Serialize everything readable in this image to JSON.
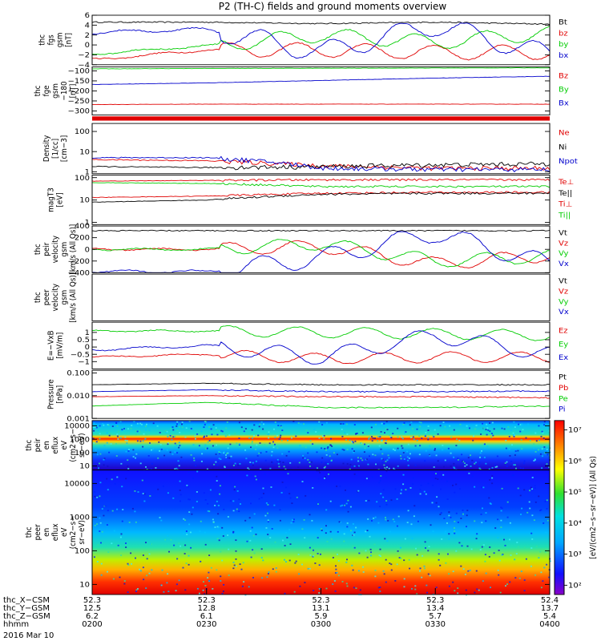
{
  "title": "P2 (TH-C) fields and ground moments overview",
  "colors": {
    "black": "#000000",
    "red": "#e00000",
    "green": "#00cc00",
    "blue": "#0000cc"
  },
  "panels": [
    {
      "id": "fgs",
      "ylabel": [
        "thc",
        "fgs",
        "gsm",
        "[nT]"
      ],
      "scale": "linear",
      "yrange": [
        -4,
        6
      ],
      "ticks": [
        {
          "v": 6,
          "t": "6"
        },
        {
          "v": 4,
          "t": "4"
        },
        {
          "v": 2,
          "t": "2"
        },
        {
          "v": 0,
          "t": "0"
        },
        {
          "v": -2,
          "t": "−2"
        },
        {
          "v": -4,
          "t": "−4"
        }
      ],
      "legend": [
        {
          "t": "Bt",
          "c": "black"
        },
        {
          "t": "bz",
          "c": "red"
        },
        {
          "t": "by",
          "c": "green"
        },
        {
          "t": "bx",
          "c": "blue"
        }
      ]
    },
    {
      "id": "fge",
      "ylabel": [
        "thc",
        "fge",
        "gsm",
        "−180",
        "[nT]"
      ],
      "scale": "linear",
      "yrange": [
        -320,
        -80
      ],
      "ticks": [
        {
          "v": -100,
          "t": "−100"
        },
        {
          "v": -150,
          "t": "−150"
        },
        {
          "v": -200,
          "t": "−200"
        },
        {
          "v": -250,
          "t": "−250"
        },
        {
          "v": -300,
          "t": "−300"
        }
      ],
      "legend": [
        {
          "t": "Bz",
          "c": "red"
        },
        {
          "t": "By",
          "c": "green"
        },
        {
          "t": "Bx",
          "c": "blue"
        }
      ]
    },
    {
      "id": "dens",
      "ylabel": [
        "Density",
        "[1/cc]",
        "[cm−3]"
      ],
      "scale": "log",
      "yrange": [
        0.8,
        250
      ],
      "ticks": [
        {
          "v": 100,
          "t": "100"
        },
        {
          "v": 10,
          "t": "10"
        },
        {
          "v": 1,
          "t": "1"
        }
      ],
      "legend": [
        {
          "t": "Ne",
          "c": "red"
        },
        {
          "t": "Ni",
          "c": "black"
        },
        {
          "t": "Npot",
          "c": "blue"
        }
      ]
    },
    {
      "id": "temp",
      "ylabel": [
        "magT3",
        "[eV]"
      ],
      "scale": "log",
      "yrange": [
        0.8,
        130
      ],
      "ticks": [
        {
          "v": 100,
          "t": "100"
        },
        {
          "v": 10,
          "t": "10"
        },
        {
          "v": 1,
          "t": "1"
        }
      ],
      "legend": [
        {
          "t": "Te⊥",
          "c": "red"
        },
        {
          "t": "Te||",
          "c": "black"
        },
        {
          "t": "Ti⊥",
          "c": "red"
        },
        {
          "t": "Ti||",
          "c": "green"
        }
      ]
    },
    {
      "id": "vi",
      "ylabel": [
        "thc",
        "peir",
        "velocity",
        "gsm",
        "[km/s (All Qs)]"
      ],
      "scale": "linear",
      "yrange": [
        -400,
        400
      ],
      "ticks": [
        {
          "v": 400,
          "t": "400"
        },
        {
          "v": 200,
          "t": "200"
        },
        {
          "v": 0,
          "t": "0"
        },
        {
          "v": -200,
          "t": "−200"
        },
        {
          "v": -400,
          "t": "−400"
        }
      ],
      "legend": [
        {
          "t": "Vt",
          "c": "black"
        },
        {
          "t": "Vz",
          "c": "red"
        },
        {
          "t": "Vy",
          "c": "green"
        },
        {
          "t": "Vx",
          "c": "blue"
        }
      ]
    },
    {
      "id": "ve",
      "ylabel": [
        "thc",
        "peer",
        "velocity",
        "gsm",
        "[km/s (All Qs)]"
      ],
      "scale": "linear",
      "yrange": [
        -1,
        1
      ],
      "ticks": [],
      "legend": [
        {
          "t": "Vt",
          "c": "black"
        },
        {
          "t": "Vz",
          "c": "red"
        },
        {
          "t": "Vy",
          "c": "green"
        },
        {
          "t": "Vx",
          "c": "blue"
        }
      ]
    },
    {
      "id": "efield",
      "ylabel": [
        "E=−VxB",
        "[mV/m]"
      ],
      "scale": "linear",
      "yrange": [
        -1.5,
        1.7
      ],
      "ticks": [
        {
          "v": 1,
          "t": "1"
        },
        {
          "v": 0.5,
          "t": "0.5"
        },
        {
          "v": 0,
          "t": "0"
        },
        {
          "v": -0.5,
          "t": "−0.5"
        },
        {
          "v": -1,
          "t": "−1"
        }
      ],
      "legend": [
        {
          "t": "Ez",
          "c": "red"
        },
        {
          "t": "Ey",
          "c": "green"
        },
        {
          "t": "Ex",
          "c": "blue"
        }
      ]
    },
    {
      "id": "press",
      "ylabel": [
        "Pressure",
        "[nPa]"
      ],
      "scale": "log",
      "yrange": [
        0.001,
        0.13
      ],
      "ticks": [
        {
          "v": 0.1,
          "t": "0.100"
        },
        {
          "v": 0.01,
          "t": "0.010"
        },
        {
          "v": 0.001,
          "t": "0.001"
        }
      ],
      "legend": [
        {
          "t": "Pt",
          "c": "black"
        },
        {
          "t": "Pb",
          "c": "red"
        },
        {
          "t": "Pe",
          "c": "green"
        },
        {
          "t": "Pi",
          "c": "blue"
        }
      ]
    },
    {
      "id": "ispec",
      "ylabel": [
        "thc",
        "peir",
        "en",
        "eflux",
        "eV",
        "(cm2−s−",
        "sr−eV)"
      ],
      "scale": "log",
      "yrange": [
        5,
        25000
      ],
      "ticks": [
        {
          "v": 10000,
          "t": "10000"
        },
        {
          "v": 1000,
          "t": "1000"
        },
        {
          "v": 100,
          "t": "100"
        },
        {
          "v": 10,
          "t": "10"
        }
      ],
      "legend": []
    },
    {
      "id": "espec",
      "ylabel": [
        "thc",
        "peer",
        "en",
        "eflux",
        "eV",
        "(cm2−s−",
        "sr−eV)"
      ],
      "scale": "log",
      "yrange": [
        5,
        25000
      ],
      "ticks": [
        {
          "v": 10000,
          "t": "10000"
        },
        {
          "v": 1000,
          "t": "1000"
        },
        {
          "v": 100,
          "t": "100"
        },
        {
          "v": 10,
          "t": "10"
        }
      ],
      "legend": []
    }
  ],
  "colorbar": {
    "label": "[eV/(cm2−s−sr−eV)] (All Qs)",
    "ticks": [
      {
        "v": 7,
        "t": "10⁷"
      },
      {
        "v": 6,
        "t": "10⁶"
      },
      {
        "v": 5,
        "t": "10⁵"
      },
      {
        "v": 4,
        "t": "10⁴"
      },
      {
        "v": 3,
        "t": "10³"
      },
      {
        "v": 2,
        "t": "10²"
      }
    ]
  },
  "time_axis": {
    "rows": [
      {
        "label": "thc_X−CSM",
        "values": [
          "52.3",
          "52.3",
          "52.3",
          "52.3",
          "52.4"
        ]
      },
      {
        "label": "thc_Y−GSM",
        "values": [
          "12.5",
          "12.8",
          "13.1",
          "13.4",
          "13.7"
        ]
      },
      {
        "label": "thc_Z−GSM",
        "values": [
          "6.2",
          "6.1",
          "5.9",
          "5.7",
          "5.4"
        ]
      },
      {
        "label": "hhmm",
        "values": [
          "0200",
          "0230",
          "0300",
          "0330",
          "0400"
        ]
      }
    ],
    "date": "2016 Mar 10"
  },
  "chart_data": {
    "type": "line",
    "x_label": "hhmm",
    "x": [
      "0200",
      "0230",
      "0300",
      "0330",
      "0400"
    ],
    "series": [
      {
        "panel": "fgs",
        "name": "Bt",
        "values": [
          4.6,
          4.6,
          4.3,
          4.6,
          4.2
        ]
      },
      {
        "panel": "fgs",
        "name": "bz",
        "values": [
          -3.0,
          -1.0,
          -1.0,
          -1.5,
          -1.5
        ]
      },
      {
        "panel": "fgs",
        "name": "by",
        "values": [
          -1.8,
          -0.2,
          2.0,
          0.5,
          2.5
        ]
      },
      {
        "panel": "fgs",
        "name": "bx",
        "values": [
          2.5,
          3.2,
          -1.5,
          4.0,
          -2.0
        ]
      },
      {
        "panel": "fge",
        "name": "Bz",
        "values": [
          -268,
          -266,
          -266,
          -266,
          -266
        ]
      },
      {
        "panel": "fge",
        "name": "By",
        "values": [
          -90,
          -88,
          -87,
          -86,
          -85
        ]
      },
      {
        "panel": "fge",
        "name": "Bx",
        "values": [
          -168,
          -160,
          -148,
          -136,
          -127
        ]
      },
      {
        "panel": "dens",
        "name": "Ne",
        "values": [
          4,
          3.5,
          2,
          1.5,
          1.5
        ]
      },
      {
        "panel": "dens",
        "name": "Ni",
        "values": [
          1.8,
          1.6,
          1.8,
          2.2,
          2.5
        ]
      },
      {
        "panel": "dens",
        "name": "Npot",
        "values": [
          5,
          5,
          1.5,
          1.3,
          1.3
        ]
      },
      {
        "panel": "temp",
        "name": "Te⊥",
        "values": [
          13,
          15,
          20,
          22,
          22
        ]
      },
      {
        "panel": "temp",
        "name": "Te||",
        "values": [
          8,
          10,
          18,
          20,
          20
        ]
      },
      {
        "panel": "temp",
        "name": "Ti⊥",
        "values": [
          70,
          75,
          80,
          80,
          80
        ]
      },
      {
        "panel": "temp",
        "name": "Ti||",
        "values": [
          60,
          55,
          40,
          40,
          40
        ]
      },
      {
        "panel": "vi",
        "name": "Vt",
        "values": [
          320,
          320,
          320,
          320,
          320
        ]
      },
      {
        "panel": "vi",
        "name": "Vz",
        "values": [
          0,
          0,
          50,
          -250,
          -100
        ]
      },
      {
        "panel": "vi",
        "name": "Vy",
        "values": [
          0,
          0,
          100,
          -200,
          -120
        ]
      },
      {
        "panel": "vi",
        "name": "Vx",
        "values": [
          -380,
          -380,
          -150,
          280,
          -250
        ]
      },
      {
        "panel": "efield",
        "name": "Ez",
        "values": [
          -0.7,
          -0.5,
          -0.8,
          -0.7,
          -0.7
        ]
      },
      {
        "panel": "efield",
        "name": "Ey",
        "values": [
          1.1,
          1.1,
          1.0,
          0.9,
          0.8
        ]
      },
      {
        "panel": "efield",
        "name": "Ex",
        "values": [
          -0.2,
          0.1,
          -0.7,
          0.8,
          -0.5
        ]
      },
      {
        "panel": "press",
        "name": "Pt",
        "values": [
          0.03,
          0.035,
          0.03,
          0.03,
          0.03
        ]
      },
      {
        "panel": "press",
        "name": "Pb",
        "values": [
          0.009,
          0.01,
          0.009,
          0.009,
          0.008
        ]
      },
      {
        "panel": "press",
        "name": "Pe",
        "values": [
          0.0035,
          0.005,
          0.003,
          0.003,
          0.0035
        ]
      },
      {
        "panel": "press",
        "name": "Pi",
        "values": [
          0.015,
          0.018,
          0.015,
          0.015,
          0.016
        ]
      }
    ]
  }
}
